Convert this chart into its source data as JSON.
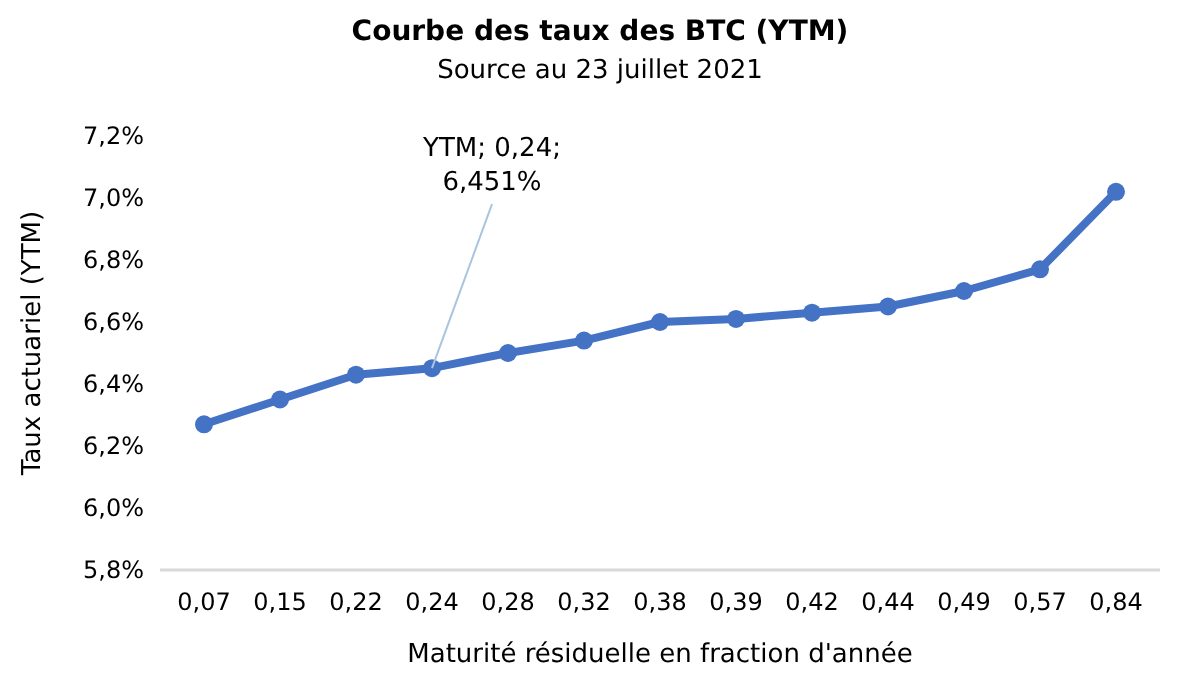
{
  "chart_data": {
    "type": "line",
    "title": "Courbe des taux des BTC (YTM)",
    "subtitle": "Source au 23 juillet 2021",
    "xlabel": "Maturité résiduelle en fraction d'année",
    "ylabel": "Taux actuariel (YTM)",
    "categories": [
      "0,07",
      "0,15",
      "0,22",
      "0,24",
      "0,28",
      "0,32",
      "0,38",
      "0,39",
      "0,42",
      "0,44",
      "0,49",
      "0,57",
      "0,84"
    ],
    "series": [
      {
        "color": "#4472c4",
        "values": [
          6.27,
          6.35,
          6.43,
          6.451,
          6.5,
          6.54,
          6.6,
          6.61,
          6.63,
          6.65,
          6.7,
          6.77,
          7.02
        ]
      }
    ],
    "ylim": [
      5.8,
      7.2
    ],
    "yticks": [
      {
        "value": 5.8,
        "label": "5,8%"
      },
      {
        "value": 6.0,
        "label": "6,0%"
      },
      {
        "value": 6.2,
        "label": "6,2%"
      },
      {
        "value": 6.4,
        "label": "6,4%"
      },
      {
        "value": 6.6,
        "label": "6,6%"
      },
      {
        "value": 6.8,
        "label": "6,8%"
      },
      {
        "value": 7.0,
        "label": "7,0%"
      },
      {
        "value": 7.2,
        "label": "7,2%"
      }
    ],
    "grid": false,
    "marker": "circle",
    "line_style": "solid",
    "annotations": [
      {
        "text": "YTM; 0,24;\n6,451%",
        "x": "0,24",
        "y": 6.451
      }
    ]
  }
}
